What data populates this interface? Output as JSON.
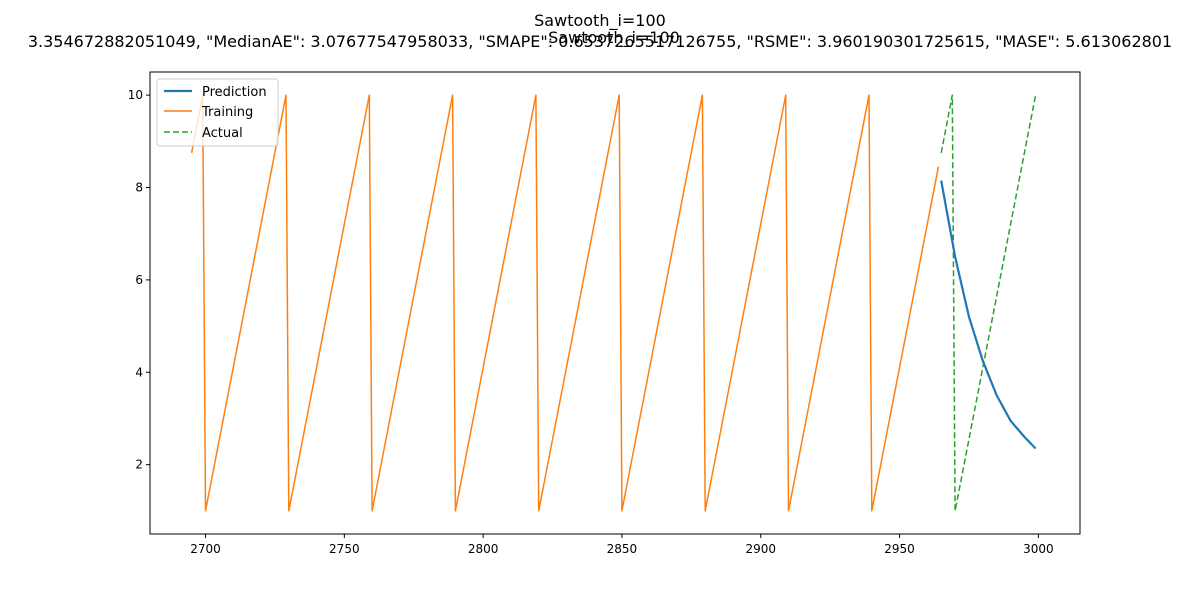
{
  "chart_data": {
    "type": "line",
    "title": "Sawtooth_i=100",
    "subtitle": "3.354672882051049, \"MedianAE\": 3.07677547958033, \"SMAPE\": 0.6537265517126755, \"RSME\": 3.960190301725615, \"MASE\": 5.613062801",
    "title_overlap": "Sawtooth_i=100",
    "xlim": [
      2680,
      3015
    ],
    "ylim": [
      0.5,
      10.5
    ],
    "xticks": [
      2700,
      2750,
      2800,
      2850,
      2900,
      2950,
      3000
    ],
    "yticks": [
      2,
      4,
      6,
      8,
      10
    ],
    "grid": false,
    "legend_position": "top-left",
    "series": [
      {
        "name": "Prediction",
        "color": "#1f77b4",
        "style": "solid",
        "points": [
          [
            2965,
            8.15
          ],
          [
            2970,
            6.5
          ],
          [
            2975,
            5.2
          ],
          [
            2980,
            4.25
          ],
          [
            2985,
            3.5
          ],
          [
            2990,
            2.95
          ],
          [
            2995,
            2.6
          ],
          [
            2999,
            2.35
          ]
        ]
      },
      {
        "name": "Training",
        "color": "#ff7f0e",
        "style": "solid",
        "points": [
          [
            2695,
            8.75
          ],
          [
            2699,
            10.0
          ],
          [
            2700,
            1.0
          ],
          [
            2729,
            10.0
          ],
          [
            2730,
            1.0
          ],
          [
            2759,
            10.0
          ],
          [
            2760,
            1.0
          ],
          [
            2789,
            10.0
          ],
          [
            2790,
            1.0
          ],
          [
            2819,
            10.0
          ],
          [
            2820,
            1.0
          ],
          [
            2849,
            10.0
          ],
          [
            2850,
            1.0
          ],
          [
            2879,
            10.0
          ],
          [
            2880,
            1.0
          ],
          [
            2909,
            10.0
          ],
          [
            2910,
            1.0
          ],
          [
            2939,
            10.0
          ],
          [
            2940,
            1.0
          ],
          [
            2964,
            8.45
          ]
        ]
      },
      {
        "name": "Actual",
        "color": "#2ca02c",
        "style": "dashed",
        "points": [
          [
            2965,
            8.75
          ],
          [
            2969,
            10.0
          ],
          [
            2970,
            1.0
          ],
          [
            2999,
            10.0
          ]
        ]
      }
    ]
  }
}
